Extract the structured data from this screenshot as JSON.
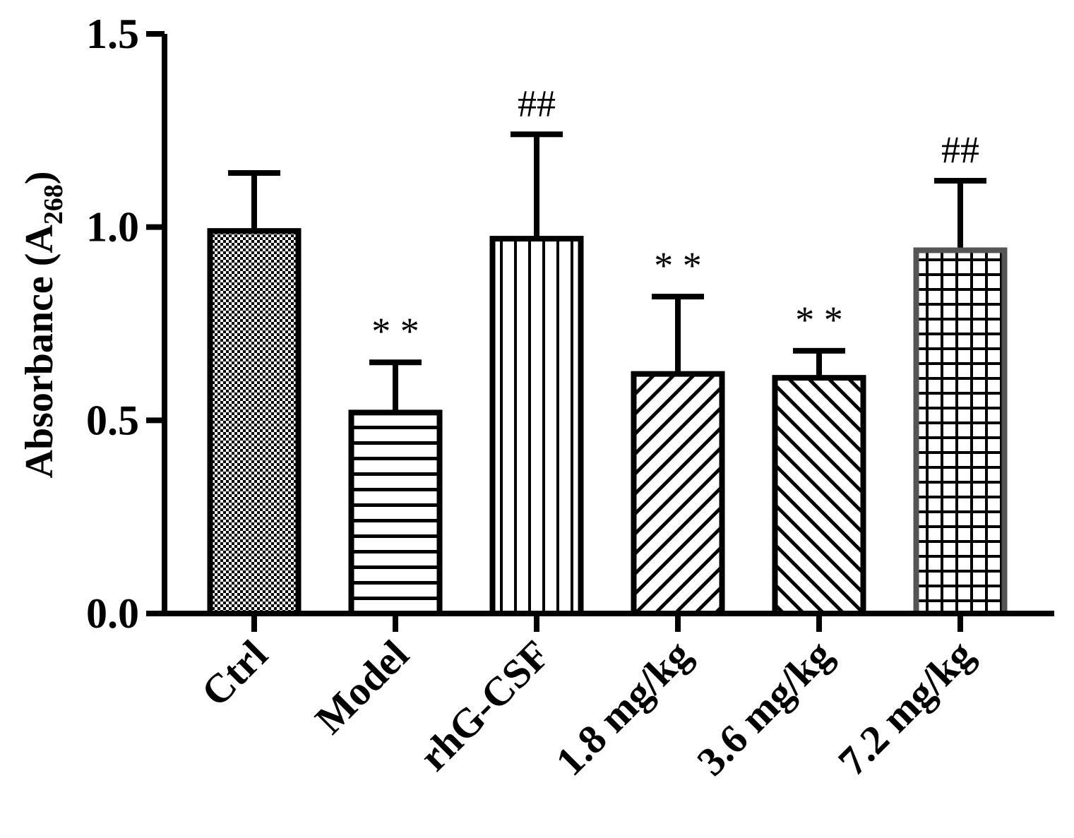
{
  "chart_data": {
    "type": "bar",
    "title": "",
    "xlabel": "",
    "ylabel_main": "Absorbance (A",
    "ylabel_sub": "268",
    "ylabel_close": ")",
    "ylim": [
      0,
      1.5
    ],
    "yticks": [
      0.0,
      0.5,
      1.0,
      1.5
    ],
    "ytick_labels": [
      "0.0",
      "0.5",
      "1.0",
      "1.5"
    ],
    "grid": false,
    "legend": "none",
    "categories": [
      "Ctrl",
      "Model",
      "rhG-CSF",
      "1.8 mg/kg",
      "3.6 mg/kg",
      "7.2 mg/kg"
    ],
    "values": [
      0.99,
      0.52,
      0.97,
      0.62,
      0.61,
      0.94
    ],
    "error_upper": [
      1.14,
      0.65,
      1.24,
      0.82,
      0.68,
      1.12
    ],
    "annotations": [
      "",
      "* *",
      "##",
      "* *",
      "* *",
      "##"
    ],
    "patterns": [
      "checker",
      "hlines",
      "vlines",
      "diag-up",
      "diag-down",
      "grid"
    ],
    "edge_colors": [
      "#000000",
      "#000000",
      "#000000",
      "#000000",
      "#000000",
      "#555555"
    ]
  }
}
